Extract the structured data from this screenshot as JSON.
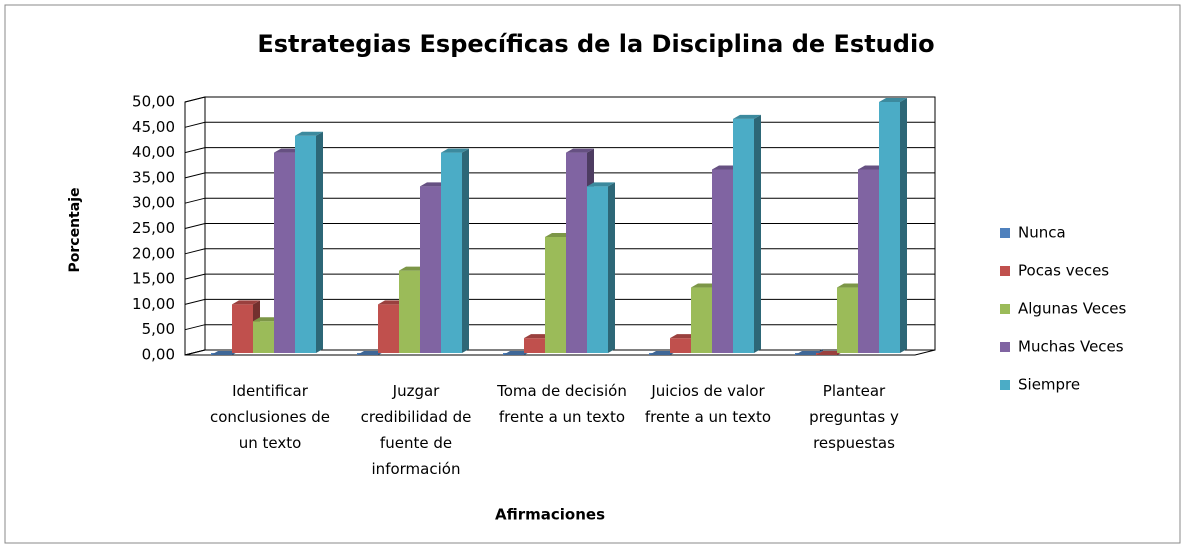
{
  "chart_data": {
    "type": "bar3d",
    "title": "Estrategias Específicas de la Disciplina de Estudio",
    "y_label": "Porcentaje",
    "x_label": "Afirmaciones",
    "categories": [
      "Identificar conclusiones de un texto",
      "Juzgar credibilidad de fuente de información",
      "Toma de decisión frente a un texto",
      "Juicios de valor frente a un texto",
      "Plantear preguntas y respuestas"
    ],
    "series": [
      {
        "name": "Nunca",
        "color": "#4f81bd",
        "values": [
          0,
          0,
          0,
          0,
          0
        ]
      },
      {
        "name": "Pocas veces",
        "color": "#c0504d",
        "values": [
          10,
          10,
          3.33,
          3.33,
          0
        ]
      },
      {
        "name": "Algunas Veces",
        "color": "#9bbb59",
        "values": [
          6.67,
          16.67,
          23.33,
          13.33,
          13.33
        ]
      },
      {
        "name": "Muchas Veces",
        "color": "#8064a2",
        "values": [
          40,
          33.33,
          40,
          36.67,
          36.67
        ]
      },
      {
        "name": "Siempre",
        "color": "#4bacc6",
        "values": [
          43.33,
          40,
          33.33,
          46.67,
          50
        ]
      }
    ],
    "ylim": [
      0,
      50
    ],
    "yticks": [
      {
        "value": 0,
        "label": "0,00"
      },
      {
        "value": 5,
        "label": "5,00"
      },
      {
        "value": 10,
        "label": "10,00"
      },
      {
        "value": 15,
        "label": "15,00"
      },
      {
        "value": 20,
        "label": "20,00"
      },
      {
        "value": 25,
        "label": "25,00"
      },
      {
        "value": 30,
        "label": "30,00"
      },
      {
        "value": 35,
        "label": "35,00"
      },
      {
        "value": 40,
        "label": "40,00"
      },
      {
        "value": 45,
        "label": "45,00"
      },
      {
        "value": 50,
        "label": "50,00"
      }
    ],
    "grid": true,
    "legend": "right"
  }
}
